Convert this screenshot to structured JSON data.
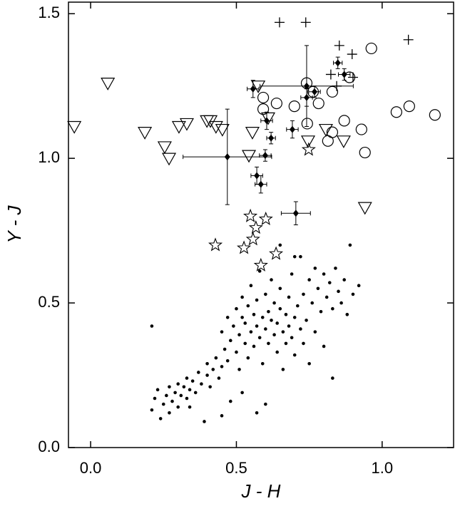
{
  "chart_data": {
    "type": "scatter",
    "x_label": "J - H",
    "y_label": "Y - J",
    "xlim": [
      -0.076,
      1.245
    ],
    "ylim": [
      0,
      1.54
    ],
    "xticks": [
      {
        "value": 0,
        "label": "0.0"
      },
      0.5,
      {
        "value": 1,
        "label": "1.0"
      }
    ],
    "yticks": [
      {
        "value": 0,
        "label": "0.0"
      },
      0.5,
      {
        "value": 1,
        "label": "1.0"
      },
      1.5
    ],
    "series": [
      {
        "marker": "dot",
        "color": "#000000",
        "x": [
          0.21,
          0.21,
          0.22,
          0.23,
          0.24,
          0.25,
          0.26,
          0.27,
          0.27,
          0.28,
          0.29,
          0.3,
          0.3,
          0.31,
          0.32,
          0.33,
          0.33,
          0.34,
          0.35,
          0.36,
          0.37,
          0.38,
          0.39,
          0.4,
          0.4,
          0.41,
          0.42,
          0.43,
          0.44,
          0.45,
          0.45,
          0.46,
          0.47,
          0.47,
          0.48,
          0.48,
          0.49,
          0.5,
          0.5,
          0.51,
          0.51,
          0.52,
          0.52,
          0.53,
          0.53,
          0.54,
          0.54,
          0.55,
          0.55,
          0.56,
          0.56,
          0.57,
          0.57,
          0.58,
          0.58,
          0.59,
          0.59,
          0.6,
          0.6,
          0.61,
          0.61,
          0.62,
          0.62,
          0.63,
          0.63,
          0.64,
          0.64,
          0.65,
          0.65,
          0.66,
          0.66,
          0.67,
          0.67,
          0.68,
          0.68,
          0.69,
          0.69,
          0.7,
          0.7,
          0.71,
          0.72,
          0.72,
          0.73,
          0.73,
          0.74,
          0.75,
          0.75,
          0.76,
          0.77,
          0.77,
          0.78,
          0.79,
          0.8,
          0.8,
          0.81,
          0.82,
          0.83,
          0.84,
          0.85,
          0.86,
          0.87,
          0.88,
          0.89,
          0.9,
          0.92,
          0.83,
          0.57,
          0.6,
          0.52,
          0.45,
          0.34,
          0.65,
          0.7
        ],
        "values": [
          0.42,
          0.13,
          0.17,
          0.2,
          0.1,
          0.15,
          0.18,
          0.12,
          0.21,
          0.16,
          0.19,
          0.22,
          0.14,
          0.18,
          0.21,
          0.17,
          0.24,
          0.2,
          0.23,
          0.19,
          0.26,
          0.22,
          0.09,
          0.25,
          0.29,
          0.21,
          0.27,
          0.31,
          0.24,
          0.28,
          0.4,
          0.34,
          0.3,
          0.45,
          0.37,
          0.16,
          0.42,
          0.33,
          0.48,
          0.39,
          0.27,
          0.45,
          0.52,
          0.36,
          0.43,
          0.49,
          0.31,
          0.4,
          0.56,
          0.46,
          0.35,
          0.42,
          0.51,
          0.38,
          0.61,
          0.45,
          0.29,
          0.41,
          0.53,
          0.47,
          0.36,
          0.44,
          0.58,
          0.39,
          0.5,
          0.43,
          0.33,
          0.48,
          0.55,
          0.4,
          0.27,
          0.46,
          0.36,
          0.52,
          0.42,
          0.38,
          0.6,
          0.45,
          0.32,
          0.49,
          0.41,
          0.66,
          0.36,
          0.53,
          0.44,
          0.58,
          0.29,
          0.5,
          0.62,
          0.4,
          0.55,
          0.47,
          0.6,
          0.35,
          0.52,
          0.57,
          0.48,
          0.62,
          0.54,
          0.5,
          0.58,
          0.46,
          0.7,
          0.53,
          0.56,
          0.24,
          0.12,
          0.15,
          0.19,
          0.11,
          0.14,
          0.7,
          0.66
        ]
      },
      {
        "marker": "triangle-down",
        "color": "#000000",
        "x": [
          -0.056,
          0.059,
          0.186,
          0.254,
          0.269,
          0.303,
          0.33,
          0.399,
          0.411,
          0.43,
          0.452,
          0.543,
          0.555,
          0.575,
          0.609,
          0.746,
          0.807,
          0.868,
          0.941
        ],
        "values": [
          1.11,
          1.26,
          1.09,
          1.04,
          1.0,
          1.11,
          1.12,
          1.13,
          1.13,
          1.11,
          1.1,
          1.01,
          1.09,
          1.25,
          1.14,
          1.06,
          1.1,
          1.06,
          0.83
        ]
      },
      {
        "marker": "circle",
        "color": "#000000",
        "x": [
          0.592,
          0.592,
          0.638,
          0.699,
          0.741,
          0.743,
          0.763,
          0.782,
          0.829,
          0.814,
          0.829,
          0.888,
          0.87,
          0.929,
          0.941,
          0.963,
          1.049,
          1.093,
          1.181
        ],
        "values": [
          1.21,
          1.17,
          1.19,
          1.18,
          1.26,
          1.12,
          1.23,
          1.19,
          1.23,
          1.06,
          1.09,
          1.28,
          1.13,
          1.1,
          1.02,
          1.38,
          1.16,
          1.18,
          1.15
        ]
      },
      {
        "marker": "plus",
        "color": "#000000",
        "x": [
          0.648,
          0.738,
          0.853,
          0.897,
          1.09,
          0.824,
          0.844,
          0.9
        ],
        "values": [
          1.47,
          1.47,
          1.39,
          1.36,
          1.41,
          1.29,
          1.25,
          1.28
        ]
      },
      {
        "marker": "star",
        "color": "#000000",
        "x": [
          0.748,
          0.548,
          0.601,
          0.567,
          0.557,
          0.526,
          0.428,
          0.636,
          0.584
        ],
        "values": [
          1.03,
          0.8,
          0.79,
          0.76,
          0.72,
          0.69,
          0.7,
          0.67,
          0.63
        ]
      },
      {
        "marker": "diamond",
        "color": "#000000",
        "x": [
          0.469,
          0.57,
          0.584,
          0.599,
          0.619,
          0.604,
          0.557,
          0.692,
          0.704,
          0.741,
          0.741,
          0.768,
          0.87,
          0.848
        ],
        "values": [
          1.005,
          0.94,
          0.91,
          1.01,
          1.07,
          1.13,
          1.24,
          1.1,
          0.81,
          1.25,
          1.21,
          1.23,
          1.29,
          1.33
        ],
        "xerr": [
          0.152,
          0.02,
          0.02,
          0.02,
          0.015,
          0.02,
          0.02,
          0.02,
          0.05,
          0.16,
          0.02,
          0.02,
          0.02,
          0.015
        ],
        "yerr": [
          0.165,
          0.03,
          0.03,
          0.02,
          0.02,
          0.03,
          0.03,
          0.03,
          0.04,
          0.14,
          0.03,
          0.02,
          0.02,
          0.02
        ]
      }
    ]
  }
}
